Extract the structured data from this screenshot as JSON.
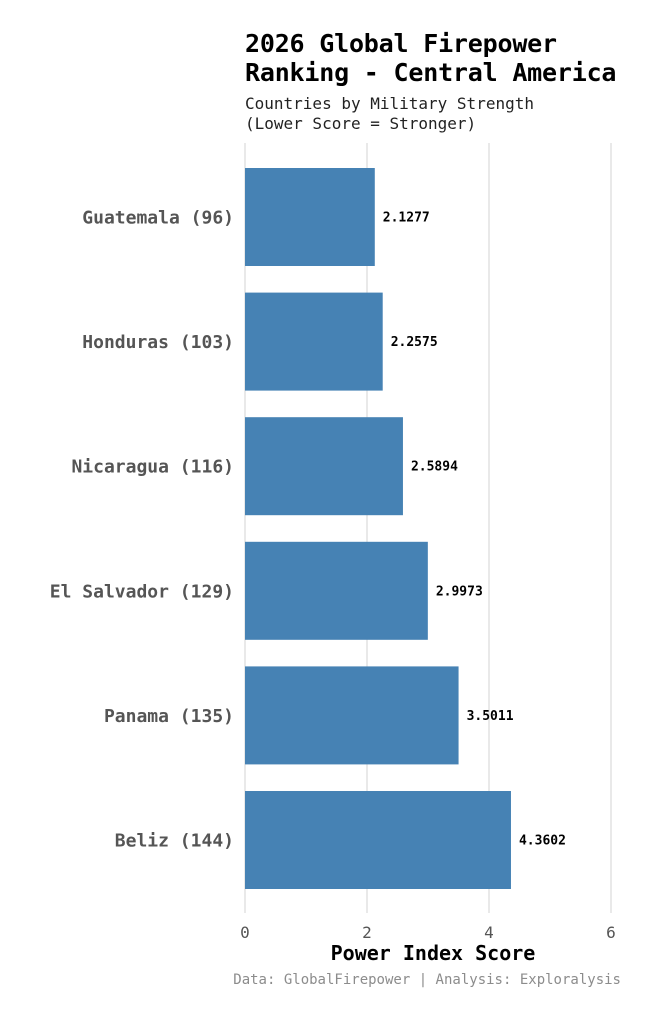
{
  "chart_data": {
    "type": "bar",
    "orientation": "horizontal",
    "title": "2026 Global Firepower\nRanking - Central America",
    "subtitle": "Countries by Military Strength\n(Lower Score = Stronger)",
    "categories": [
      "Guatemala (96)",
      "Honduras (103)",
      "Nicaragua (116)",
      "El Salvador (129)",
      "Panama (135)",
      "Beliz (144)"
    ],
    "values": [
      2.1277,
      2.2575,
      2.5894,
      2.9973,
      3.5011,
      4.3602
    ],
    "value_labels": [
      "2.1277",
      "2.2575",
      "2.5894",
      "2.9973",
      "3.5011",
      "4.3602"
    ],
    "xlabel": "Power Index Score",
    "ylabel": "",
    "xlim": [
      0,
      6
    ],
    "xticks": [
      0,
      2,
      4,
      6
    ],
    "xtick_labels": [
      "0",
      "2",
      "4",
      "6"
    ],
    "grid": "vertical",
    "legend": "none",
    "bar_color": "#4682b4",
    "caption": "Data: GlobalFirepower | Analysis: Exploralysis"
  }
}
